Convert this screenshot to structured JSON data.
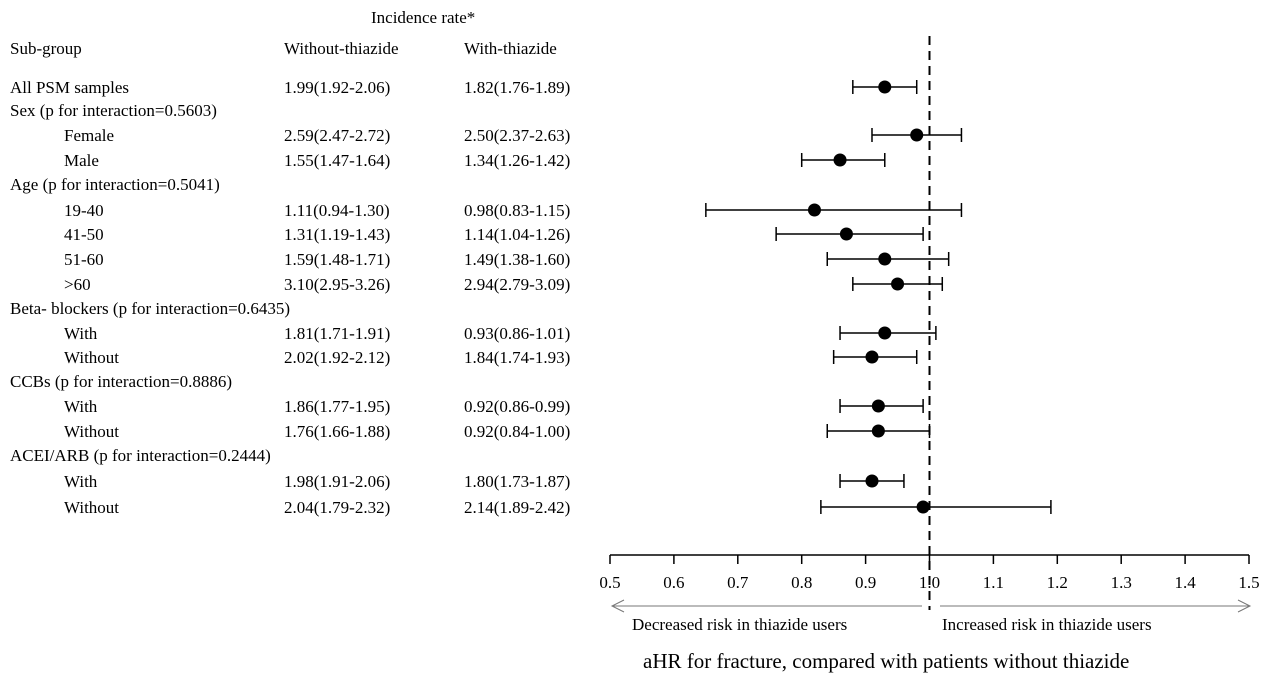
{
  "header": {
    "incidence_title": "Incidence rate*",
    "col_subgroup": "Sub-group",
    "col_without": "Without-thiazide",
    "col_with": "With-thiazide"
  },
  "chart_data": {
    "type": "forest",
    "xlabel": "aHR for fracture, compared with patients without thiazide",
    "xlim": [
      0.5,
      1.5
    ],
    "ticks": [
      0.5,
      0.6,
      0.7,
      0.8,
      0.9,
      1.0,
      1.1,
      1.2,
      1.3,
      1.4,
      1.5
    ],
    "tick_labels": [
      "0.5",
      "0.6",
      "0.7",
      "0.8",
      "0.9",
      "1.0",
      "1.1",
      "1.2",
      "1.3",
      "1.4",
      "1.5"
    ],
    "reference_line": 1.0,
    "left_arrow_label": "Decreased risk in thiazide users",
    "right_arrow_label": "Increased risk in thiazide users",
    "rows": [
      {
        "label": "All PSM samples",
        "indent": 0,
        "without": "1.99(1.92-2.06)",
        "with": "1.82(1.76-1.89)",
        "hr": 0.93,
        "lo": 0.88,
        "hi": 0.98
      },
      {
        "label": "Sex (p for interaction=0.5603)",
        "indent": 0,
        "header": true
      },
      {
        "label": "Female",
        "indent": 1,
        "without": "2.59(2.47-2.72)",
        "with": "2.50(2.37-2.63)",
        "hr": 0.98,
        "lo": 0.91,
        "hi": 1.05
      },
      {
        "label": "Male",
        "indent": 1,
        "without": "1.55(1.47-1.64)",
        "with": "1.34(1.26-1.42)",
        "hr": 0.86,
        "lo": 0.8,
        "hi": 0.93
      },
      {
        "label": "Age (p for interaction=0.5041)",
        "indent": 0,
        "header": true
      },
      {
        "label": "19-40",
        "indent": 1,
        "without": "1.11(0.94-1.30)",
        "with": "0.98(0.83-1.15)",
        "hr": 0.82,
        "lo": 0.65,
        "hi": 1.05
      },
      {
        "label": "41-50",
        "indent": 1,
        "without": "1.31(1.19-1.43)",
        "with": "1.14(1.04-1.26)",
        "hr": 0.87,
        "lo": 0.76,
        "hi": 0.99
      },
      {
        "label": "51-60",
        "indent": 1,
        "without": "1.59(1.48-1.71)",
        "with": "1.49(1.38-1.60)",
        "hr": 0.93,
        "lo": 0.84,
        "hi": 1.03
      },
      {
        "label": ">60",
        "indent": 1,
        "without": "3.10(2.95-3.26)",
        "with": "2.94(2.79-3.09)",
        "hr": 0.95,
        "lo": 0.88,
        "hi": 1.02
      },
      {
        "label": "Beta- blockers (p for interaction=0.6435)",
        "indent": 0,
        "header": true
      },
      {
        "label": "With",
        "indent": 1,
        "without": "1.81(1.71-1.91)",
        "with": "0.93(0.86-1.01)",
        "hr": 0.93,
        "lo": 0.86,
        "hi": 1.01
      },
      {
        "label": "Without",
        "indent": 1,
        "without": "2.02(1.92-2.12)",
        "with": "1.84(1.74-1.93)",
        "hr": 0.91,
        "lo": 0.85,
        "hi": 0.98
      },
      {
        "label": "CCBs (p for interaction=0.8886)",
        "indent": 0,
        "header": true
      },
      {
        "label": "With",
        "indent": 1,
        "without": "1.86(1.77-1.95)",
        "with": "0.92(0.86-0.99)",
        "hr": 0.92,
        "lo": 0.86,
        "hi": 0.99
      },
      {
        "label": "Without",
        "indent": 1,
        "without": "1.76(1.66-1.88)",
        "with": "0.92(0.84-1.00)",
        "hr": 0.92,
        "lo": 0.84,
        "hi": 1.0
      },
      {
        "label": "ACEI/ARB (p for interaction=0.2444)",
        "indent": 0,
        "header": true
      },
      {
        "label": "With",
        "indent": 1,
        "without": "1.98(1.91-2.06)",
        "with": "1.80(1.73-1.87)",
        "hr": 0.91,
        "lo": 0.86,
        "hi": 0.96
      },
      {
        "label": "Without",
        "indent": 1,
        "without": "2.04(1.79-2.32)",
        "with": "2.14(1.89-2.42)",
        "hr": 0.99,
        "lo": 0.83,
        "hi": 1.19
      }
    ]
  }
}
